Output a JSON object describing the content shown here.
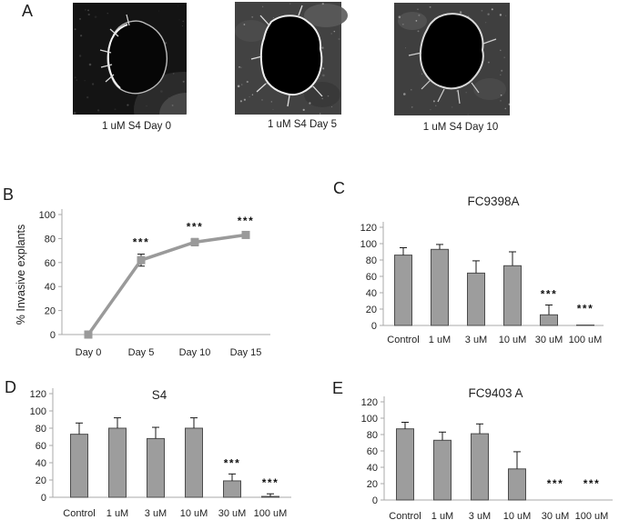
{
  "panels": {
    "a": "A",
    "b": "B",
    "c": "C",
    "d": "D",
    "e": "E"
  },
  "microscopy": {
    "images": [
      {
        "label": "1 uM S4 Day 0"
      },
      {
        "label": "1 uM S4 Day 5"
      },
      {
        "label": "1 uM S4 Day 10"
      }
    ]
  },
  "chart_data": [
    {
      "panel": "B",
      "type": "line",
      "title": "",
      "xlabel": "",
      "ylabel": "% Invasive explants",
      "categories": [
        "Day 0",
        "Day 5",
        "Day 10",
        "Day 15"
      ],
      "values": [
        0,
        62,
        77,
        83
      ],
      "errors": [
        0,
        5,
        3,
        2
      ],
      "significance": [
        "",
        "***",
        "***",
        "***"
      ],
      "ylim": [
        0,
        100
      ],
      "ytick_step": 20,
      "grid": false,
      "legend": false
    },
    {
      "panel": "C",
      "type": "bar",
      "title": "FC9398A",
      "xlabel": "",
      "ylabel": "",
      "categories": [
        "Control",
        "1 uM",
        "3 uM",
        "10 uM",
        "30 uM",
        "100 uM"
      ],
      "values": [
        86,
        93,
        64,
        73,
        13,
        0.5
      ],
      "errors": [
        9,
        6,
        15,
        17,
        12,
        0
      ],
      "significance": [
        "",
        "",
        "",
        "",
        "***",
        "***"
      ],
      "ylim": [
        0,
        120
      ],
      "ytick_step": 20,
      "grid": false,
      "legend": false
    },
    {
      "panel": "D",
      "type": "bar",
      "title": "S4",
      "xlabel": "",
      "ylabel": "",
      "categories": [
        "Control",
        "1 uM",
        "3 uM",
        "10 uM",
        "30 uM",
        "100 uM"
      ],
      "values": [
        73,
        80,
        68,
        80,
        19,
        1
      ],
      "errors": [
        13,
        12,
        13,
        12,
        8,
        3
      ],
      "significance": [
        "",
        "",
        "",
        "",
        "***",
        "***"
      ],
      "ylim": [
        0,
        120
      ],
      "ytick_step": 20,
      "grid": false,
      "legend": false
    },
    {
      "panel": "E",
      "type": "bar",
      "title": "FC9403 A",
      "xlabel": "",
      "ylabel": "",
      "categories": [
        "Control",
        "1 uM",
        "3 uM",
        "10 uM",
        "30 uM",
        "100 uM"
      ],
      "values": [
        87,
        73,
        81,
        38,
        0,
        0
      ],
      "errors": [
        8,
        10,
        12,
        21,
        0,
        0
      ],
      "significance": [
        "",
        "",
        "",
        "",
        "***",
        "***"
      ],
      "ylim": [
        0,
        120
      ],
      "ytick_step": 20,
      "grid": false,
      "legend": false
    }
  ],
  "colors": {
    "bar_fill": "#9d9d9d",
    "bar_border": "#4c4c4c",
    "line_series": "#9a9a9a",
    "axis": "#a9a9a9",
    "text": "#1f1f1f",
    "error_bar": "#1a1a1a",
    "stars": "#111111"
  }
}
